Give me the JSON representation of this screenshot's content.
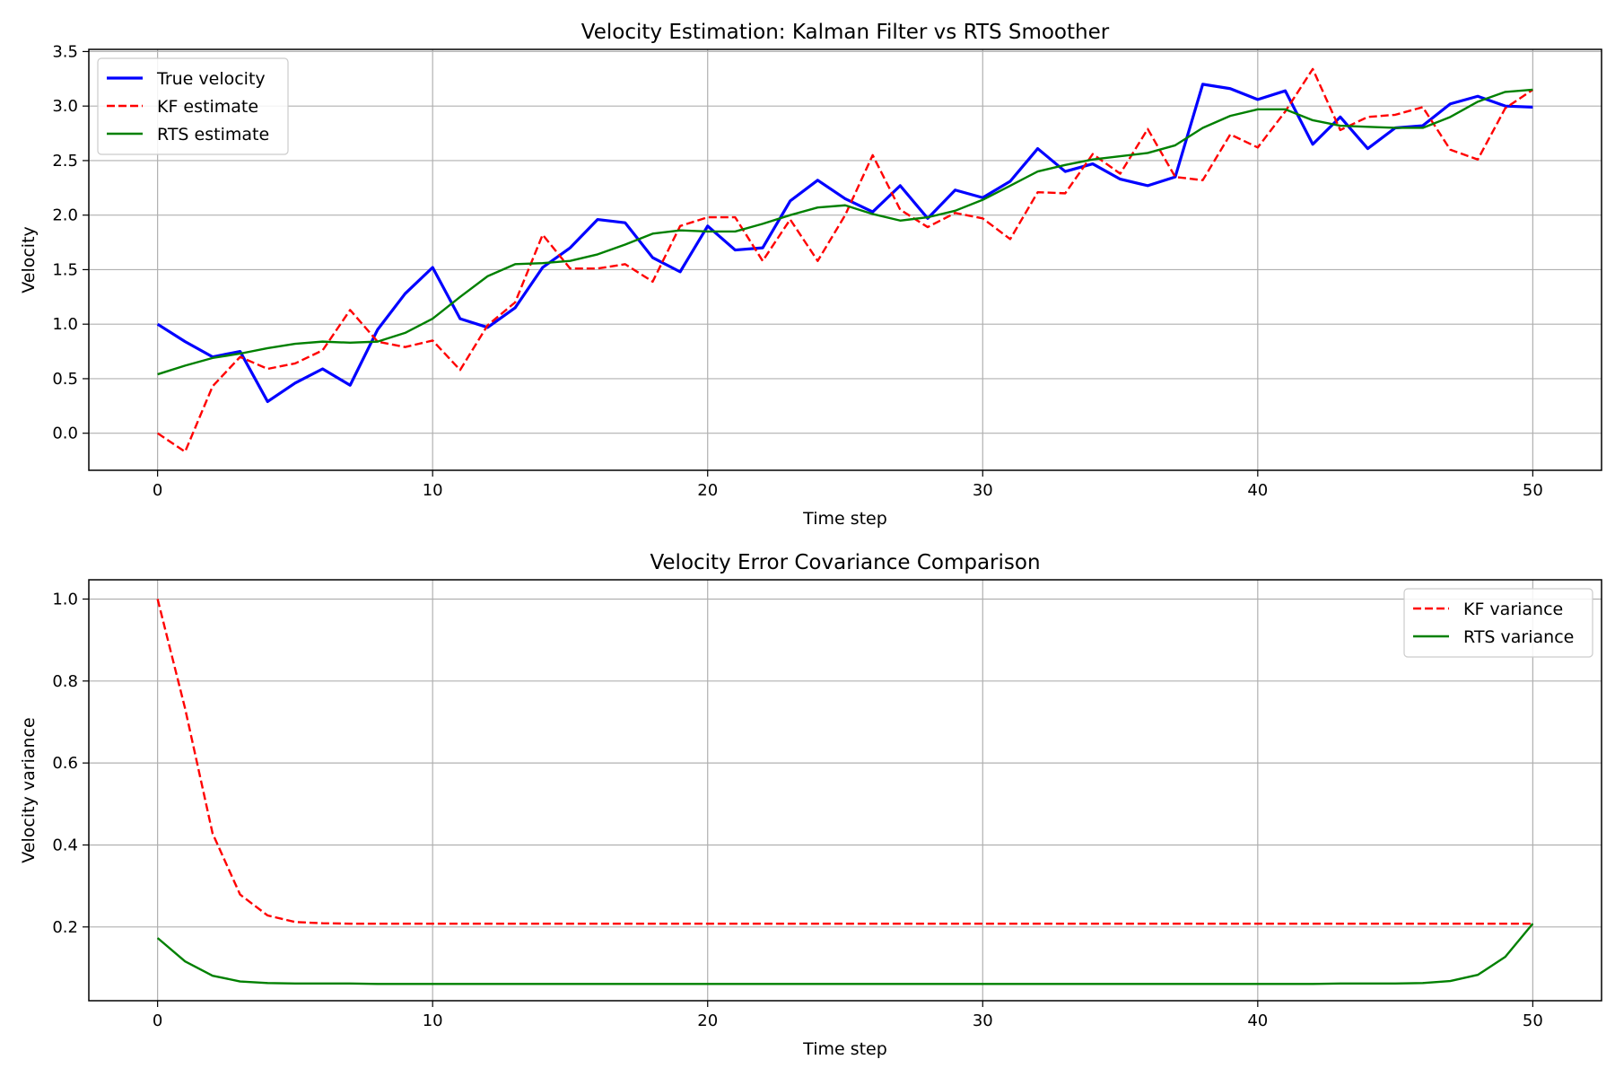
{
  "chart_data": [
    {
      "type": "line",
      "title": "Velocity Estimation: Kalman Filter vs RTS Smoother",
      "xlabel": "Time step",
      "ylabel": "Velocity",
      "xlim": [
        -2.5,
        52.5
      ],
      "ylim": [
        -0.34,
        3.52
      ],
      "xticks": [
        0,
        10,
        20,
        30,
        40,
        50
      ],
      "yticks": [
        0.0,
        0.5,
        1.0,
        1.5,
        2.0,
        2.5,
        3.0,
        3.5
      ],
      "ytick_labels": [
        "0.0",
        "0.5",
        "1.0",
        "1.5",
        "2.0",
        "2.5",
        "3.0",
        "3.5"
      ],
      "grid": true,
      "legend_position": "upper-left",
      "series": [
        {
          "name": "True velocity",
          "color": "#0000ff",
          "style": "solid",
          "values": [
            1.0,
            0.84,
            0.7,
            0.75,
            0.29,
            0.46,
            0.59,
            0.44,
            0.95,
            1.28,
            1.52,
            1.05,
            0.97,
            1.15,
            1.52,
            1.7,
            1.96,
            1.93,
            1.61,
            1.48,
            1.9,
            1.68,
            1.7,
            2.13,
            2.32,
            2.15,
            2.03,
            2.27,
            1.97,
            2.23,
            2.16,
            2.31,
            2.61,
            2.4,
            2.47,
            2.33,
            2.27,
            2.35,
            3.2,
            3.16,
            3.06,
            3.14,
            2.65,
            2.9,
            2.61,
            2.8,
            2.82,
            3.02,
            3.09,
            3.0,
            2.99
          ]
        },
        {
          "name": "KF estimate",
          "color": "#ff0000",
          "style": "dashed",
          "values": [
            0.0,
            -0.17,
            0.43,
            0.7,
            0.59,
            0.64,
            0.76,
            1.13,
            0.84,
            0.79,
            0.85,
            0.58,
            0.99,
            1.2,
            1.82,
            1.51,
            1.51,
            1.55,
            1.39,
            1.9,
            1.98,
            1.98,
            1.58,
            1.96,
            1.58,
            2.0,
            2.55,
            2.05,
            1.89,
            2.02,
            1.97,
            1.78,
            2.21,
            2.2,
            2.56,
            2.38,
            2.79,
            2.35,
            2.32,
            2.74,
            2.62,
            2.95,
            3.34,
            2.78,
            2.9,
            2.92,
            2.99,
            2.6,
            2.51,
            2.98,
            3.15
          ]
        },
        {
          "name": "RTS estimate",
          "color": "#008000",
          "style": "solid",
          "values": [
            0.54,
            0.62,
            0.69,
            0.73,
            0.78,
            0.82,
            0.84,
            0.83,
            0.84,
            0.92,
            1.05,
            1.25,
            1.44,
            1.55,
            1.56,
            1.58,
            1.64,
            1.73,
            1.83,
            1.86,
            1.85,
            1.85,
            1.92,
            2.0,
            2.07,
            2.09,
            2.01,
            1.95,
            1.98,
            2.04,
            2.14,
            2.27,
            2.4,
            2.46,
            2.51,
            2.54,
            2.57,
            2.64,
            2.8,
            2.91,
            2.97,
            2.97,
            2.87,
            2.82,
            2.81,
            2.8,
            2.8,
            2.9,
            3.04,
            3.13,
            3.15
          ]
        }
      ]
    },
    {
      "type": "line",
      "title": "Velocity Error Covariance Comparison",
      "xlabel": "Time step",
      "ylabel": "Velocity variance",
      "xlim": [
        -2.5,
        52.5
      ],
      "ylim": [
        0.02,
        1.047
      ],
      "xticks": [
        0,
        10,
        20,
        30,
        40,
        50
      ],
      "yticks": [
        0.2,
        0.4,
        0.6,
        0.8,
        1.0
      ],
      "ytick_labels": [
        "0.2",
        "0.4",
        "0.6",
        "0.8",
        "1.0"
      ],
      "grid": true,
      "legend_position": "upper-right",
      "series": [
        {
          "name": "KF variance",
          "color": "#ff0000",
          "style": "dashed",
          "values": [
            1.0,
            0.733,
            0.428,
            0.279,
            0.228,
            0.212,
            0.209,
            0.208,
            0.208,
            0.208,
            0.208,
            0.208,
            0.208,
            0.208,
            0.208,
            0.208,
            0.208,
            0.208,
            0.208,
            0.208,
            0.208,
            0.208,
            0.208,
            0.208,
            0.208,
            0.208,
            0.208,
            0.208,
            0.208,
            0.208,
            0.208,
            0.208,
            0.208,
            0.208,
            0.208,
            0.208,
            0.208,
            0.208,
            0.208,
            0.208,
            0.208,
            0.208,
            0.208,
            0.208,
            0.208,
            0.208,
            0.208,
            0.208,
            0.208,
            0.208,
            0.208
          ]
        },
        {
          "name": "RTS variance",
          "color": "#008000",
          "style": "solid",
          "values": [
            0.173,
            0.116,
            0.081,
            0.067,
            0.063,
            0.062,
            0.062,
            0.062,
            0.061,
            0.061,
            0.061,
            0.061,
            0.061,
            0.061,
            0.061,
            0.061,
            0.061,
            0.061,
            0.061,
            0.061,
            0.061,
            0.061,
            0.061,
            0.061,
            0.061,
            0.061,
            0.061,
            0.061,
            0.061,
            0.061,
            0.061,
            0.061,
            0.061,
            0.061,
            0.061,
            0.061,
            0.061,
            0.061,
            0.061,
            0.061,
            0.061,
            0.061,
            0.061,
            0.062,
            0.062,
            0.062,
            0.063,
            0.068,
            0.083,
            0.127,
            0.208
          ]
        }
      ]
    }
  ]
}
